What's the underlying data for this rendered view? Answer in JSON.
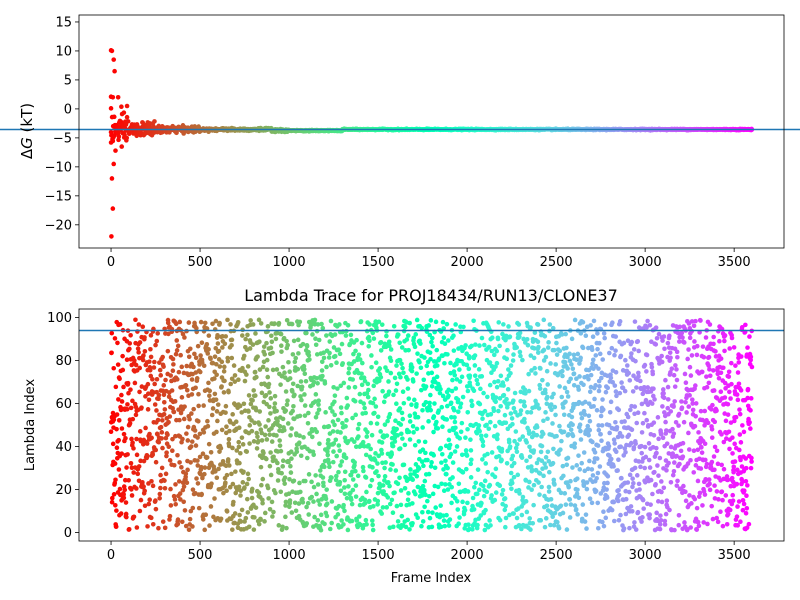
{
  "chart_data": [
    {
      "type": "scatter",
      "title": "",
      "xlabel": "",
      "ylabel_symbol": "Δ",
      "ylabel_var": "G",
      "ylabel_unit": " (kT)",
      "xlim": [
        -180,
        3780
      ],
      "ylim": [
        -24,
        16.2
      ],
      "xticks": [
        0,
        500,
        1000,
        1500,
        2000,
        2500,
        3000,
        3500
      ],
      "yticks": [
        -20,
        -15,
        -10,
        -5,
        0,
        5,
        10,
        15
      ],
      "grid": false,
      "colormap": "rainbow (red at frame 0 to violet at frame 3600)",
      "reference_line": {
        "y": -3.55,
        "color": "#1f77b4"
      },
      "trace": {
        "x_start": 0,
        "x_end": 3600,
        "final_value": -3.55,
        "note_points": [
          {
            "x": 0,
            "y": 10.1
          },
          {
            "x": 5,
            "y": 10.0
          },
          {
            "x": 15,
            "y": 8.5
          },
          {
            "x": 20,
            "y": 6.5
          },
          {
            "x": 0,
            "y": 2.1
          },
          {
            "x": 10,
            "y": 2.0
          },
          {
            "x": 40,
            "y": 2.0
          },
          {
            "x": 0,
            "y": 0.1
          },
          {
            "x": 2,
            "y": -22.0
          },
          {
            "x": 10,
            "y": -17.2
          },
          {
            "x": 5,
            "y": -12.0
          },
          {
            "x": 15,
            "y": -9.5
          },
          {
            "x": 0,
            "y": -5.8
          },
          {
            "x": 25,
            "y": -7.2
          },
          {
            "x": 60,
            "y": -6.5
          },
          {
            "x": 90,
            "y": 0.5
          }
        ]
      }
    },
    {
      "type": "scatter",
      "title": "Lambda Trace for PROJ18434/RUN13/CLONE37",
      "xlabel": "Frame Index",
      "ylabel": "Lambda Index",
      "xlim": [
        -180,
        3780
      ],
      "ylim": [
        -4,
        104
      ],
      "xticks": [
        0,
        500,
        1000,
        1500,
        2000,
        2500,
        3000,
        3500
      ],
      "yticks": [
        0,
        20,
        40,
        60,
        80,
        100
      ],
      "grid": false,
      "colormap": "rainbow (red at frame 0 to violet at frame 3600)",
      "reference_line": {
        "y": 94,
        "color": "#1f77b4"
      },
      "points": {
        "count": 3600,
        "x_range": [
          0,
          3600
        ],
        "y_range": [
          1,
          99
        ],
        "distribution": "approximately uniform random"
      }
    }
  ]
}
